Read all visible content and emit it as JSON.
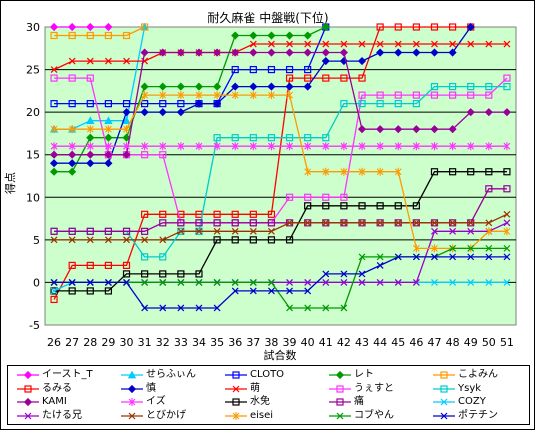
{
  "chart_data": {
    "type": "line",
    "title": "耐久麻雀 中盤戦(下位)",
    "xlabel": "試合数",
    "ylabel": "得点",
    "x": [
      26,
      27,
      28,
      29,
      30,
      31,
      32,
      33,
      34,
      35,
      36,
      37,
      38,
      39,
      40,
      41,
      42,
      43,
      44,
      45,
      46,
      47,
      48,
      49,
      50,
      51
    ],
    "ylim": [
      -5,
      30
    ],
    "yticks": [
      -5,
      0,
      5,
      10,
      15,
      20,
      25,
      30
    ],
    "grid": true,
    "legend_position": "bottom",
    "plot_background": "#ccffcc",
    "series": [
      {
        "name": "イースト_T",
        "color": "#ff00ff",
        "marker": "diamond",
        "values": [
          30,
          30,
          30,
          30,
          null,
          null,
          null,
          null,
          null,
          null,
          null,
          null,
          null,
          null,
          null,
          null,
          null,
          null,
          null,
          null,
          null,
          null,
          null,
          null,
          null,
          null
        ]
      },
      {
        "name": "せらふぃん",
        "color": "#00ccff",
        "marker": "tri",
        "values": [
          18,
          18,
          19,
          19,
          19,
          30,
          null,
          null,
          null,
          null,
          null,
          null,
          null,
          null,
          null,
          null,
          null,
          null,
          null,
          null,
          null,
          null,
          null,
          null,
          null,
          null
        ]
      },
      {
        "name": "CLOTO",
        "color": "#0000ff",
        "marker": "square",
        "values": [
          21,
          21,
          21,
          21,
          21,
          21,
          21,
          21,
          21,
          21,
          25,
          25,
          25,
          25,
          25,
          30,
          null,
          null,
          null,
          null,
          null,
          null,
          null,
          null,
          null,
          null
        ]
      },
      {
        "name": "レト",
        "color": "#009900",
        "marker": "diamond",
        "values": [
          13,
          13,
          17,
          17,
          17,
          23,
          23,
          23,
          23,
          23,
          29,
          29,
          29,
          29,
          29,
          30,
          null,
          null,
          null,
          null,
          null,
          null,
          null,
          null,
          null,
          null
        ]
      },
      {
        "name": "こよみん",
        "color": "#ff9900",
        "marker": "square",
        "values": [
          29,
          29,
          29,
          29,
          29,
          30,
          null,
          null,
          null,
          null,
          null,
          null,
          null,
          null,
          null,
          null,
          null,
          null,
          null,
          null,
          null,
          null,
          null,
          null,
          null,
          null
        ]
      },
      {
        "name": "るみる",
        "color": "#ff0000",
        "marker": "square",
        "values": [
          -2,
          2,
          2,
          2,
          2,
          8,
          8,
          8,
          8,
          8,
          8,
          8,
          8,
          24,
          24,
          24,
          24,
          24,
          30,
          30,
          30,
          30,
          30,
          30,
          null,
          null
        ]
      },
      {
        "name": "慎",
        "color": "#0000cc",
        "marker": "diamond",
        "values": [
          14,
          14,
          14,
          14,
          20,
          20,
          20,
          20,
          21,
          21,
          23,
          23,
          23,
          23,
          23,
          26,
          26,
          26,
          27,
          27,
          27,
          27,
          27,
          30,
          null,
          null
        ]
      },
      {
        "name": "萌",
        "color": "#ff0000",
        "marker": "x",
        "values": [
          25,
          26,
          26,
          26,
          26,
          26,
          27,
          27,
          27,
          27,
          27,
          28,
          28,
          28,
          28,
          28,
          28,
          28,
          28,
          28,
          28,
          28,
          28,
          28,
          28,
          28
        ]
      },
      {
        "name": "うぇすと",
        "color": "#ff33ff",
        "marker": "square",
        "values": [
          24,
          24,
          24,
          15,
          15,
          15,
          15,
          7,
          7,
          7,
          7,
          7,
          7,
          10,
          10,
          10,
          10,
          22,
          22,
          22,
          22,
          22,
          22,
          22,
          22,
          24
        ]
      },
      {
        "name": "Ysyk",
        "color": "#00cccc",
        "marker": "square",
        "values": [
          6,
          6,
          6,
          6,
          6,
          3,
          3,
          6,
          6,
          17,
          17,
          17,
          17,
          17,
          17,
          17,
          21,
          21,
          21,
          21,
          21,
          23,
          23,
          23,
          23,
          23
        ]
      },
      {
        "name": "KAMI",
        "color": "#990099",
        "marker": "diamond",
        "values": [
          15,
          15,
          15,
          15,
          15,
          27,
          27,
          27,
          27,
          27,
          27,
          27,
          27,
          27,
          27,
          27,
          27,
          18,
          18,
          18,
          18,
          18,
          18,
          20,
          20,
          20
        ]
      },
      {
        "name": "イズ",
        "color": "#ff33ff",
        "marker": "star",
        "values": [
          16,
          16,
          16,
          16,
          16,
          16,
          16,
          16,
          16,
          16,
          16,
          16,
          16,
          16,
          16,
          16,
          16,
          16,
          16,
          16,
          16,
          16,
          16,
          16,
          16,
          16
        ]
      },
      {
        "name": "水免",
        "color": "#000000",
        "marker": "square",
        "values": [
          -1,
          -1,
          -1,
          -1,
          1,
          1,
          1,
          1,
          1,
          5,
          5,
          5,
          5,
          5,
          9,
          9,
          9,
          9,
          9,
          9,
          9,
          13,
          13,
          13,
          13,
          13
        ]
      },
      {
        "name": "痛",
        "color": "#990099",
        "marker": "square",
        "values": [
          6,
          6,
          6,
          6,
          6,
          6,
          7,
          7,
          7,
          7,
          7,
          7,
          7,
          7,
          7,
          7,
          7,
          7,
          7,
          7,
          7,
          7,
          7,
          7,
          11,
          11
        ]
      },
      {
        "name": "COZY",
        "color": "#00ccff",
        "marker": "x",
        "values": [
          -1,
          0,
          0,
          0,
          0,
          0,
          0,
          0,
          0,
          0,
          0,
          0,
          0,
          0,
          0,
          0,
          0,
          0,
          0,
          0,
          0,
          0,
          0,
          0,
          0,
          0
        ]
      },
      {
        "name": "たける兄",
        "color": "#9900cc",
        "marker": "x",
        "values": [
          0,
          0,
          0,
          0,
          0,
          0,
          0,
          0,
          0,
          0,
          0,
          0,
          0,
          0,
          0,
          0,
          0,
          0,
          0,
          0,
          0,
          6,
          6,
          6,
          6,
          7
        ]
      },
      {
        "name": "とびかげ",
        "color": "#993300",
        "marker": "x",
        "values": [
          5,
          5,
          5,
          5,
          5,
          5,
          5,
          6,
          6,
          6,
          6,
          6,
          6,
          7,
          7,
          7,
          7,
          7,
          7,
          7,
          7,
          7,
          7,
          7,
          7,
          8
        ]
      },
      {
        "name": "eisei",
        "color": "#ff9900",
        "marker": "star",
        "values": [
          18,
          18,
          18,
          18,
          18,
          22,
          22,
          22,
          22,
          22,
          22,
          22,
          22,
          22,
          13,
          13,
          13,
          13,
          13,
          13,
          4,
          4,
          4,
          4,
          6,
          6
        ]
      },
      {
        "name": "コブやん",
        "color": "#009900",
        "marker": "x",
        "values": [
          0,
          0,
          0,
          0,
          0,
          0,
          0,
          0,
          0,
          0,
          0,
          0,
          0,
          -3,
          -3,
          -3,
          -3,
          3,
          3,
          3,
          3,
          3,
          4,
          4,
          4,
          4
        ]
      },
      {
        "name": "ポテチン",
        "color": "#0000cc",
        "marker": "x",
        "values": [
          0,
          0,
          0,
          0,
          0,
          -3,
          -3,
          -3,
          -3,
          -3,
          -1,
          -1,
          -1,
          -1,
          -1,
          1,
          1,
          1,
          2,
          3,
          3,
          3,
          3,
          3,
          3,
          3
        ]
      }
    ]
  }
}
